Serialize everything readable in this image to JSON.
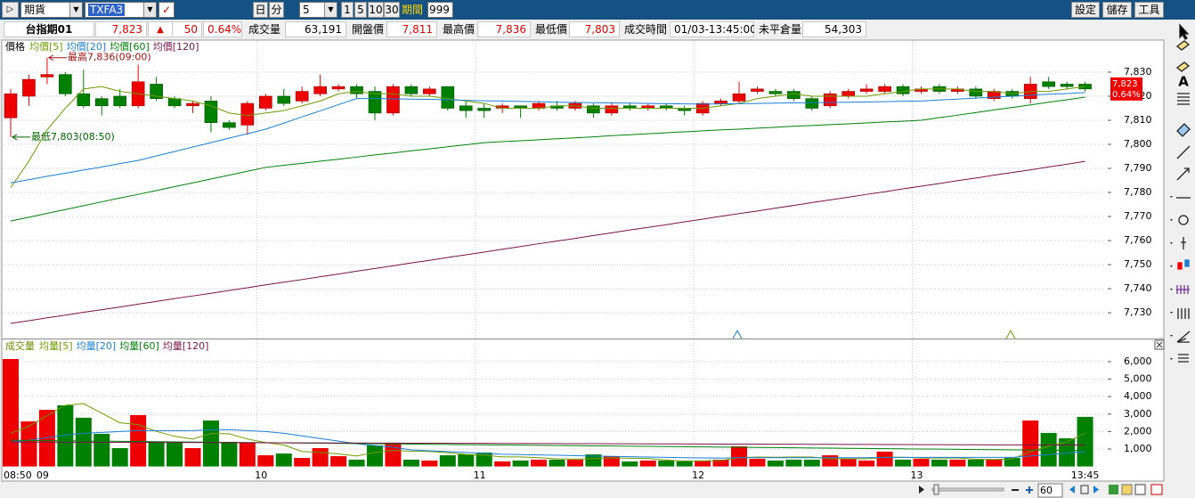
{
  "toolbar": {
    "market": "期貨",
    "symbol": "TXFA3",
    "day": "日",
    "minute": "分",
    "interval": "5",
    "periods": [
      "1",
      "5",
      "10",
      "30"
    ],
    "period_label": "期間",
    "period_count": "999",
    "settings": "設定",
    "save": "儲存",
    "tools": "工具"
  },
  "header": {
    "name": "台指期01",
    "price": "7,823",
    "arrow": "▲",
    "change": "50",
    "change_pct": "0.64%",
    "volume_label": "成交量",
    "volume": "63,191",
    "open_label": "開盤價",
    "open": "7,811",
    "high_label": "最高價",
    "high": "7,836",
    "low_label": "最低價",
    "low": "7,803",
    "time_label": "成交時間",
    "time": "01/03-13:45:00",
    "oi_label": "未平倉量",
    "oi": "54,303"
  },
  "right_tools": {
    "text_tool": "A"
  },
  "footer": {
    "zoom": "60"
  },
  "chart_data": [
    {
      "type": "candlestick",
      "legend_label": "價格",
      "up_color": "#ee0000",
      "down_color": "#008000",
      "open": [
        7811,
        7820,
        7828,
        7829,
        7821,
        7819,
        7820,
        7816,
        7825,
        7819,
        7816,
        7818,
        7809,
        7808,
        7815,
        7820,
        7818,
        7821,
        7823,
        7824,
        7822,
        7813,
        7824,
        7821,
        7824,
        7816,
        7815,
        7815,
        7816,
        7815,
        7816,
        7815,
        7816,
        7813,
        7816,
        7815,
        7816,
        7815,
        7813,
        7817,
        7818,
        7822,
        7822,
        7822,
        7819,
        7816,
        7820,
        7822,
        7822,
        7824,
        7822,
        7824,
        7822,
        7823,
        7819,
        7822,
        7819,
        7826,
        7825,
        7825
      ],
      "high": [
        7823,
        7829,
        7836,
        7830,
        7831,
        7820,
        7823,
        7833,
        7828,
        7820,
        7818,
        7820,
        7810,
        7818,
        7821,
        7823,
        7824,
        7829,
        7825,
        7825,
        7824,
        7825,
        7825,
        7824,
        7824,
        7818,
        7817,
        7817,
        7816,
        7818,
        7818,
        7818,
        7817,
        7817,
        7817,
        7817,
        7817,
        7816,
        7818,
        7819,
        7826,
        7824,
        7823,
        7823,
        7820,
        7822,
        7823,
        7825,
        7825,
        7825,
        7824,
        7825,
        7824,
        7824,
        7823,
        7823,
        7828,
        7828,
        7826,
        7826
      ],
      "low": [
        7803,
        7816,
        7825,
        7820,
        7815,
        7812,
        7815,
        7815,
        7818,
        7815,
        7813,
        7805,
        7806,
        7804,
        7814,
        7816,
        7817,
        7820,
        7822,
        7819,
        7810,
        7812,
        7820,
        7820,
        7814,
        7811,
        7811,
        7813,
        7811,
        7814,
        7814,
        7814,
        7811,
        7812,
        7814,
        7814,
        7814,
        7812,
        7812,
        7816,
        7817,
        7821,
        7820,
        7818,
        7814,
        7815,
        7819,
        7821,
        7821,
        7820,
        7821,
        7821,
        7821,
        7819,
        7818,
        7819,
        7817,
        7823,
        7823,
        7822
      ],
      "close": [
        7821,
        7827,
        7829,
        7821,
        7816,
        7816,
        7816,
        7826,
        7819,
        7816,
        7817,
        7809,
        7807,
        7817,
        7820,
        7817,
        7822,
        7824,
        7824,
        7821,
        7813,
        7824,
        7821,
        7823,
        7815,
        7814,
        7814,
        7816,
        7815,
        7817,
        7815,
        7817,
        7813,
        7816,
        7815,
        7816,
        7815,
        7814,
        7817,
        7818,
        7821,
        7823,
        7821,
        7819,
        7815,
        7821,
        7822,
        7823,
        7824,
        7821,
        7823,
        7822,
        7823,
        7820,
        7822,
        7820,
        7825,
        7824,
        7824,
        7823
      ],
      "series": [
        {
          "name": "均價[5]",
          "color": "#6f9a00",
          "values": [
            7782,
            7793,
            7806,
            7815,
            7823,
            7824,
            7822,
            7821,
            7820,
            7819,
            7818,
            7816,
            7813,
            7812,
            7813,
            7814,
            7816,
            7818,
            7821,
            7822,
            7821,
            7821,
            7820,
            7820,
            7819,
            7818,
            7817,
            7815,
            7815,
            7815,
            7816,
            7816,
            7815,
            7815,
            7815,
            7815,
            7815,
            7815,
            7815,
            7816,
            7817,
            7819,
            7820,
            7821,
            7820,
            7820,
            7820,
            7820,
            7821,
            7822,
            7823,
            7823,
            7823,
            7822,
            7822,
            7821,
            7822,
            7822,
            7823,
            7824
          ]
        },
        {
          "name": "均價[20]",
          "color": "#1a7fd4",
          "values": [
            7784.0,
            7785.3,
            7786.7,
            7788.0,
            7789.3,
            7790.6,
            7792.0,
            7793.3,
            7795.2,
            7797.0,
            7798.9,
            7800.7,
            7802.6,
            7804.4,
            7806.3,
            7808.8,
            7811.4,
            7813.9,
            7816.5,
            7819.0,
            7819.0,
            7818.9,
            7818.8,
            7818.7,
            7818.5,
            7818.3,
            7818.1,
            7818.0,
            7817.8,
            7817.7,
            7817.5,
            7817.4,
            7817.3,
            7817.2,
            7817.1,
            7817.0,
            7816.9,
            7816.8,
            7816.7,
            7816.8,
            7816.9,
            7817.0,
            7817.1,
            7817.2,
            7817.3,
            7817.4,
            7817.5,
            7817.6,
            7817.7,
            7817.9,
            7818.0,
            7818.4,
            7818.8,
            7819.2,
            7819.6,
            7820.0,
            7820.4,
            7820.8,
            7821.1,
            7821.5
          ]
        },
        {
          "name": "均價[60]",
          "color": "#00800a",
          "values": [
            7768.1,
            7769.7,
            7771.3,
            7772.9,
            7774.5,
            7776.1,
            7777.7,
            7779.2,
            7780.8,
            7782.4,
            7784.0,
            7785.6,
            7787.2,
            7788.8,
            7790.4,
            7791.3,
            7792.1,
            7793.0,
            7793.8,
            7794.7,
            7795.6,
            7796.4,
            7797.3,
            7798.1,
            7799.0,
            7799.8,
            7800.7,
            7801.1,
            7801.5,
            7801.9,
            7802.3,
            7802.7,
            7803.1,
            7803.6,
            7804.0,
            7804.4,
            7804.8,
            7805.2,
            7805.6,
            7806.0,
            7806.3,
            7806.7,
            7807.1,
            7807.5,
            7807.8,
            7808.2,
            7808.5,
            7808.9,
            7809.3,
            7809.6,
            7810.0,
            7811.1,
            7812.1,
            7813.2,
            7814.3,
            7815.3,
            7816.4,
            7817.5,
            7818.5,
            7819.6
          ]
        },
        {
          "name": "均價[120]",
          "color": "#7a1448",
          "values": [
            7725.6,
            7726.7,
            7727.9,
            7729.0,
            7730.2,
            7731.3,
            7732.4,
            7733.6,
            7734.7,
            7735.9,
            7737.0,
            7738.1,
            7739.3,
            7740.4,
            7741.6,
            7742.7,
            7743.8,
            7745.0,
            7746.1,
            7747.3,
            7748.4,
            7749.5,
            7750.7,
            7751.8,
            7753.0,
            7754.1,
            7755.2,
            7756.4,
            7757.5,
            7758.7,
            7759.8,
            7760.9,
            7762.1,
            7763.2,
            7764.4,
            7765.5,
            7766.6,
            7767.8,
            7768.9,
            7770.1,
            7771.2,
            7772.3,
            7773.5,
            7774.6,
            7775.8,
            7776.9,
            7778.0,
            7779.2,
            7780.3,
            7781.5,
            7782.6,
            7783.7,
            7784.9,
            7786.0,
            7787.2,
            7788.3,
            7789.4,
            7790.6,
            7791.7,
            7792.9
          ]
        }
      ],
      "annotations": [
        {
          "text": "最高7,836(09:00)",
          "color": "#a01010"
        },
        {
          "text": "最低7,803(08:50)",
          "color": "#006400"
        }
      ],
      "ylim": [
        7719.3,
        7842.2
      ],
      "yticks": [
        {
          "value": 7730,
          "label": "7,730"
        },
        {
          "value": 7740,
          "label": "7,740"
        },
        {
          "value": 7750,
          "label": "7,750"
        },
        {
          "value": 7760,
          "label": "7,760"
        },
        {
          "value": 7770,
          "label": "7,770"
        },
        {
          "value": 7780,
          "label": "7,780"
        },
        {
          "value": 7790,
          "label": "7,790"
        },
        {
          "value": 7800,
          "label": "7,800"
        },
        {
          "value": 7810,
          "label": "7,810"
        },
        {
          "value": 7820,
          "label": "7,820"
        },
        {
          "value": 7830,
          "label": "7,830"
        }
      ],
      "grid": true
    },
    {
      "type": "bar",
      "legend_label": "成交量",
      "legend_color": "#6f8a00",
      "categories": [
        "08:50",
        null,
        "09",
        null,
        null,
        null,
        null,
        null,
        null,
        null,
        null,
        null,
        null,
        null,
        "10",
        null,
        null,
        null,
        null,
        null,
        null,
        null,
        null,
        null,
        null,
        null,
        "11",
        null,
        null,
        null,
        null,
        null,
        null,
        null,
        null,
        null,
        null,
        null,
        "12",
        null,
        null,
        null,
        null,
        null,
        null,
        null,
        null,
        null,
        null,
        null,
        "13",
        null,
        null,
        null,
        null,
        null,
        null,
        null,
        null,
        "13:45"
      ],
      "values": [
        6150,
        2580,
        3240,
        3500,
        2790,
        1870,
        1050,
        2940,
        1410,
        1410,
        1050,
        2630,
        1410,
        1360,
        640,
        740,
        490,
        1050,
        590,
        390,
        1200,
        1360,
        390,
        340,
        640,
        690,
        800,
        290,
        340,
        390,
        390,
        390,
        690,
        590,
        290,
        340,
        340,
        290,
        340,
        390,
        1150,
        440,
        340,
        390,
        390,
        640,
        440,
        340,
        850,
        390,
        440,
        390,
        390,
        390,
        390,
        490,
        2630,
        1920,
        1610,
        2840
      ],
      "series": [
        {
          "name": "均量[5]",
          "color": "#6f9a00",
          "values": [
            1900,
            2300,
            2900,
            3500,
            3600,
            3050,
            2500,
            2400,
            2010,
            1730,
            1570,
            1890,
            1870,
            1570,
            1370,
            1230,
            860,
            800,
            720,
            600,
            800,
            920,
            870,
            860,
            790,
            690,
            650,
            550,
            550,
            500,
            440,
            420,
            450,
            490,
            470,
            460,
            370,
            310,
            320,
            340,
            500,
            540,
            530,
            540,
            540,
            440,
            440,
            440,
            530,
            530,
            490,
            480,
            490,
            420,
            400,
            430,
            860,
            1160,
            1400,
            1900
          ]
        },
        {
          "name": "均量[20]",
          "color": "#1a7fd4",
          "values": [
            1400,
            1500,
            1650,
            1800,
            1900,
            1950,
            2000,
            2050,
            2050,
            2050,
            2050,
            2100,
            2100,
            2050,
            2000,
            1900,
            1750,
            1600,
            1450,
            1300,
            1200,
            1100,
            950,
            900,
            850,
            800,
            750,
            700,
            680,
            660,
            640,
            620,
            600,
            580,
            560,
            540,
            520,
            500,
            490,
            480,
            500,
            500,
            500,
            500,
            500,
            500,
            500,
            500,
            520,
            520,
            520,
            520,
            520,
            520,
            520,
            520,
            600,
            680,
            760,
            850
          ]
        },
        {
          "name": "均量[60]",
          "color": "#00800a",
          "values": [
            1500,
            1490,
            1480,
            1470,
            1460,
            1450,
            1440,
            1430,
            1420,
            1410,
            1400,
            1390,
            1380,
            1370,
            1360,
            1350,
            1340,
            1330,
            1320,
            1310,
            1300,
            1290,
            1280,
            1270,
            1260,
            1250,
            1240,
            1230,
            1220,
            1210,
            1200,
            1190,
            1180,
            1170,
            1160,
            1150,
            1140,
            1130,
            1120,
            1110,
            1100,
            1090,
            1080,
            1070,
            1060,
            1050,
            1040,
            1030,
            1020,
            1010,
            1000,
            990,
            980,
            970,
            960,
            950,
            940,
            930,
            920,
            910
          ]
        },
        {
          "name": "均量[120]",
          "color": "#7a1448",
          "values": [
            1400,
            1397,
            1394,
            1391,
            1388,
            1385,
            1382,
            1379,
            1376,
            1373,
            1370,
            1367,
            1364,
            1361,
            1358,
            1355,
            1352,
            1349,
            1346,
            1343,
            1340,
            1337,
            1334,
            1331,
            1328,
            1325,
            1322,
            1319,
            1316,
            1313,
            1310,
            1307,
            1304,
            1301,
            1298,
            1295,
            1292,
            1289,
            1286,
            1283,
            1280,
            1277,
            1274,
            1271,
            1268,
            1265,
            1262,
            1259,
            1256,
            1253,
            1250,
            1247,
            1244,
            1241,
            1238,
            1235,
            1232,
            1229,
            1226,
            1223
          ]
        }
      ],
      "ylim": [
        0,
        7170
      ],
      "yticks": [
        {
          "value": 1000,
          "label": "1,000"
        },
        {
          "value": 2000,
          "label": "2,000"
        },
        {
          "value": 3000,
          "label": "3,000"
        },
        {
          "value": 4000,
          "label": "4,000"
        },
        {
          "value": 5000,
          "label": "5,000"
        },
        {
          "value": 6000,
          "label": "6,000"
        }
      ],
      "grid": true
    }
  ]
}
